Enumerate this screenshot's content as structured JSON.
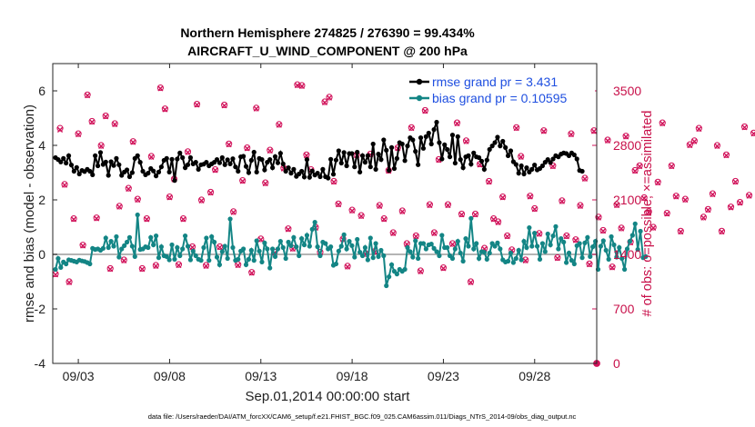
{
  "colors": {
    "rmse": "#000000",
    "bias": "#138585",
    "obs": "#d1125a",
    "zero_line": "#b4b4b4"
  },
  "chart_data": {
    "type": "line",
    "title": "Northern Hemisphere 274825 / 276390 = 99.434%",
    "subtitle": "AIRCRAFT_U_WIND_COMPONENT @ 200 hPa",
    "xlabel": "Sep.01,2014 00:00:00 start",
    "ylabel": "rmse and bias (model - observation)",
    "y2label": "# of obs: o=possible; ×=assimilated",
    "footer": "data file: /Users/raeder/DAI/ATM_forcXX/CAM6_setup/f.e21.FHIST_BGC.f09_025.CAM6assim.011/Diags_NTrS_2014-09/obs_diag_output.nc",
    "x_unit": "days since Sep.01,2014 00:00:00",
    "xlim": [
      1.6,
      31.4
    ],
    "ylim": [
      -4,
      7
    ],
    "y2lim": [
      0,
      3850
    ],
    "x_ticks": [
      {
        "value": 3,
        "label": "09/03"
      },
      {
        "value": 8,
        "label": "09/08"
      },
      {
        "value": 13,
        "label": "09/13"
      },
      {
        "value": 18,
        "label": "09/18"
      },
      {
        "value": 23,
        "label": "09/23"
      },
      {
        "value": 28,
        "label": "09/28"
      }
    ],
    "y_ticks": [
      -4,
      -2,
      0,
      2,
      4,
      6
    ],
    "y2_ticks": [
      0,
      700,
      1400,
      2100,
      2800,
      3500
    ],
    "legend": {
      "position": "top-right",
      "entries": [
        {
          "series": "rmse",
          "label": "rmse grand pr = 3.431"
        },
        {
          "series": "bias",
          "label": "bias grand pr = 0.10595"
        }
      ]
    },
    "series": [
      {
        "name": "rmse",
        "values": [
          3.55,
          3.48,
          3.39,
          3.52,
          3.35,
          3.62,
          3.28,
          3.05,
          3.19,
          2.95,
          3.08,
          3.04,
          3.12,
          3.05,
          2.92,
          3.62,
          3.25,
          3.74,
          3.3,
          3.39,
          2.9,
          3.4,
          3.26,
          3.52,
          3.29,
          2.9,
          3.02,
          3.1,
          2.85,
          3.0,
          3.52,
          3.62,
          3.38,
          3.05,
          2.92,
          2.98,
          3.15,
          3.06,
          2.88,
          3.02,
          3.21,
          3.45,
          3.52,
          3.02,
          3.49,
          2.71,
          3.5,
          3.72,
          3.55,
          3.18,
          3.29,
          3.55,
          3.32,
          3.38,
          3.12,
          3.29,
          3.31,
          3.38,
          3.25,
          3.32,
          3.38,
          3.48,
          3.36,
          3.55,
          3.29,
          3.47,
          3.32,
          3.51,
          3.21,
          3.05,
          3.58,
          3.6,
          3.23,
          3.0,
          3.45,
          3.75,
          3.02,
          3.52,
          3.48,
          3.1,
          3.38,
          3.48,
          3.18,
          3.59,
          3.36,
          3.71,
          3.32,
          3.05,
          3.18,
          2.98,
          3.12,
          2.86,
          2.95,
          3.05,
          2.84,
          3.48,
          2.83,
          3.06,
          2.91,
          2.98,
          2.85,
          3.12,
          2.85,
          2.8,
          3.49,
          2.94,
          3.46,
          3.8,
          3.35,
          3.74,
          3.25,
          3.7,
          3.7,
          3.21,
          3.75,
          3.02,
          3.62,
          3.38,
          3.62,
          3.21,
          4.05,
          3.12,
          3.68,
          3.48,
          4.2,
          3.82,
          3.08,
          3.92,
          3.15,
          3.52,
          4.1,
          4.05,
          3.44,
          3.98,
          4.28,
          4.2,
          3.78,
          3.29,
          4.28,
          3.89,
          4.32,
          4.45,
          4.05,
          4.58,
          4.85,
          4.1,
          3.5,
          4.02,
          3.85,
          3.58,
          4.38,
          3.35,
          4.32,
          3.48,
          3.18,
          3.58,
          3.62,
          3.31,
          3.72,
          3.58,
          3.55,
          3.42,
          3.12,
          3.46,
          3.85,
          3.98,
          4.1,
          4.3,
          3.98,
          4.15,
          3.92,
          3.62,
          3.8,
          3.4,
          3.3,
          2.98,
          3.25,
          2.95,
          3.18,
          3.02,
          3.12,
          3.28,
          3.1,
          3.15,
          3.25,
          3.38,
          3.48,
          3.37,
          3.5,
          3.62,
          3.58,
          3.68,
          3.72,
          3.7,
          3.62,
          3.72,
          3.65,
          3.5,
          3.08,
          3.05
        ]
      },
      {
        "name": "bias",
        "values": [
          -0.55,
          -0.15,
          -0.48,
          -0.28,
          -0.35,
          -0.2,
          -0.22,
          -0.25,
          -0.28,
          -0.21,
          -0.24,
          -0.26,
          -0.3,
          -0.35,
          0.22,
          0.18,
          0.2,
          0.15,
          0.22,
          0.6,
          0.25,
          0.48,
          0.3,
          0.65,
          -0.1,
          0.2,
          0.32,
          0.45,
          0.62,
          0.3,
          -0.08,
          1.45,
          0.18,
          0.2,
          0.28,
          0.25,
          0.62,
          0.35,
          0.68,
          -0.12,
          0.28,
          -0.05,
          -0.08,
          -0.2,
          0.35,
          -0.18,
          0.25,
          -0.05,
          0.2,
          0.68,
          0.3,
          -0.2,
          0.12,
          -0.05,
          -0.18,
          -0.22,
          0.25,
          0.6,
          -0.22,
          0.65,
          0.45,
          -0.1,
          -0.38,
          0.1,
          0.3,
          -0.15,
          1.3,
          0.25,
          -0.22,
          -0.18,
          0.12,
          0.2,
          -0.38,
          -0.18,
          0.15,
          -0.22,
          0.5,
          0.12,
          -0.28,
          0.42,
          0.2,
          -0.5,
          0.2,
          -0.08,
          0.2,
          0.48,
          0.25,
          -0.15,
          0.45,
          0.32,
          0.62,
          0.28,
          -0.05,
          0.58,
          0.35,
          0.7,
          0.3,
          0.92,
          1.18,
          0.28,
          -0.05,
          0.45,
          0.4,
          0.2,
          0.28,
          -0.4,
          -0.35,
          0.12,
          0.3,
          0.72,
          0.2,
          0.48,
          0.32,
          -0.1,
          0.55,
          0.08,
          -0.05,
          0.25,
          -0.2,
          0.6,
          -0.12,
          0.4,
          -0.08,
          0.15,
          -0.05,
          -1.15,
          -0.82,
          -0.38,
          -0.62,
          -0.72,
          -0.55,
          -0.62,
          -0.55,
          0.25,
          0.1,
          -0.1,
          0.5,
          -0.15,
          0.4,
          0.4,
          0.2,
          0.35,
          0.38,
          0.22,
          0.1,
          -0.05,
          0.7,
          0.25,
          0.25,
          -0.05,
          -0.15,
          0.2,
          0.48,
          0.05,
          -0.25,
          0.58,
          0.3,
          1.32,
          0.2,
          0.4,
          -0.15,
          0.1,
          0.08,
          -0.18,
          0.05,
          0.4,
          0.3,
          0.42,
          0.2,
          -0.2,
          -0.28,
          -0.25,
          0.05,
          -0.3,
          -0.15,
          0.15,
          -0.2,
          0.48,
          0.25,
          0.98,
          0.3,
          0.78,
          0.3,
          -0.18,
          0.4,
          0.1,
          0.75,
          0.35,
          0.68,
          1.02,
          0.2,
          0.58,
          0.45,
          -0.3,
          0.05,
          -0.22,
          -0.35,
          0.32,
          0.4,
          -0.12,
          0.42,
          0.62,
          -0.08,
          0.28,
          0.48,
          -0.55,
          0.3,
          0.5,
          0.15,
          -0.18,
          0.65,
          0.35,
          -0.1,
          0.25,
          -0.15,
          -0.55,
          0.2,
          0.48,
          0.7,
          1.12,
          0.18,
          0.85,
          -0.12,
          -0.08
        ]
      }
    ],
    "obs_counts": {
      "possible": [
        1150,
        3020,
        2300,
        1050,
        1860,
        2950,
        1520,
        3450,
        3110,
        1870,
        2800,
        3180,
        1220,
        3080,
        2020,
        1330,
        2250,
        2850,
        2110,
        1220,
        1860,
        2660,
        1260,
        3540,
        3270,
        2140,
        2370,
        1270,
        1860,
        2720,
        1500,
        3330,
        2100,
        1260,
        2200,
        2490,
        1500,
        3320,
        2820,
        1950,
        1270,
        2350,
        2770,
        1170,
        3280,
        1600,
        2320,
        2740,
        1430,
        3070,
        2510,
        1730,
        1480,
        3580,
        3570,
        2680,
        2490,
        1750,
        1430,
        3360,
        3420,
        2340,
        2050,
        1600,
        1250,
        1970,
        2680,
        1900,
        1410,
        2690,
        1440,
        2030,
        1860,
        2480,
        1680,
        2770,
        1960,
        1540,
        3030,
        1640,
        1190,
        3250,
        2040,
        1680,
        2620,
        1230,
        2040,
        1540,
        3090,
        1920,
        2860,
        1050,
        1920,
        2560,
        1480,
        2340,
        1860,
        1820,
        2140,
        1640,
        1460,
        3030,
        2660,
        1330,
        2150,
        1990,
        1670,
        2990,
        3350,
        2540,
        1360,
        2090,
        1640,
        2950,
        1590,
        2030,
        2380,
        1280,
        2990,
        1880,
        1710,
        2870,
        1240,
        2040,
        1740,
        2920,
        1560,
        2480,
        2540,
        2130,
        1950,
        1750,
        2330,
        3090,
        1930,
        2540,
        2150,
        1700,
        2110,
        2810,
        2860,
        3020,
        1880,
        1980,
        2180,
        2800,
        1700,
        2680,
        2010,
        2340,
        2070,
        3040,
        2160,
        2960,
        1760,
        2100,
        1680,
        2140,
        2540,
        2030,
        1870,
        2350,
        1890,
        1530,
        2040,
        2590,
        2900,
        2260,
        1940,
        2410,
        2920,
        1650,
        2890,
        1610,
        2000,
        1890,
        1960,
        2900,
        1690,
        2390,
        1700,
        3030,
        1520,
        1880,
        2340,
        2850,
        3330,
        1780,
        1500,
        2560,
        2230,
        2790,
        1880,
        2690,
        1960,
        2230,
        1590,
        2130,
        2010,
        2840,
        1740,
        2630,
        1950,
        2260,
        1720,
        3070,
        3020,
        3220,
        1900,
        2540,
        1790
      ],
      "assimilated": [
        1140,
        3000,
        2290,
        1040,
        1850,
        2940,
        1510,
        3440,
        3100,
        1860,
        2790,
        3170,
        1210,
        3070,
        2010,
        1320,
        2240,
        2840,
        2100,
        1210,
        1850,
        2650,
        1250,
        3530,
        3260,
        2130,
        2360,
        1260,
        1850,
        2710,
        1490,
        3320,
        2090,
        1250,
        2190,
        2480,
        1490,
        3310,
        2810,
        1940,
        1260,
        2340,
        2760,
        1160,
        3270,
        1590,
        2310,
        2730,
        1420,
        3060,
        2500,
        1720,
        1470,
        3570,
        3560,
        2670,
        2480,
        1740,
        1420,
        3350,
        3410,
        2330,
        2040,
        1590,
        1240,
        1960,
        2670,
        1890,
        1400,
        2680,
        1430,
        2020,
        1850,
        2470,
        1670,
        2760,
        1950,
        1530,
        3020,
        1630,
        1180,
        3240,
        2030,
        1670,
        2610,
        1220,
        2030,
        1530,
        3080,
        1910,
        2850,
        1040,
        1910,
        2550,
        1470,
        2330,
        1850,
        1810,
        2130,
        1630,
        1450,
        3020,
        2650,
        1320,
        2140,
        1980,
        1660,
        2980,
        3340,
        2530,
        1350,
        2080,
        1630,
        2940,
        1580,
        2020,
        2370,
        1270,
        2980,
        1870,
        1700,
        2860,
        1230,
        2030,
        1730,
        2910,
        1550,
        2470,
        2530,
        2120,
        1940,
        1740,
        2320,
        3080,
        1920,
        2530,
        2140,
        1690,
        2100,
        2800,
        2850,
        3010,
        1870,
        1970,
        2170,
        2790,
        1690,
        2670,
        2000,
        2330,
        2060,
        3030,
        2150,
        2950,
        1750,
        2090,
        1670,
        2130,
        2530,
        2020,
        1860,
        2340,
        1880,
        1520,
        2030,
        2580,
        2890,
        2250,
        1930,
        2400,
        2910,
        1640,
        2880,
        1600,
        1990,
        1880,
        1950,
        2890,
        1680,
        2380,
        1690,
        3020,
        1510,
        1870,
        2330,
        2840,
        3320,
        1770,
        1490,
        2550,
        2220,
        2780,
        1870,
        2680,
        1950,
        2220,
        1580,
        2120,
        2000,
        2830,
        1730,
        2620,
        1940,
        2250,
        1710,
        3060,
        3010,
        3210,
        1890,
        2530,
        1780
      ]
    }
  }
}
